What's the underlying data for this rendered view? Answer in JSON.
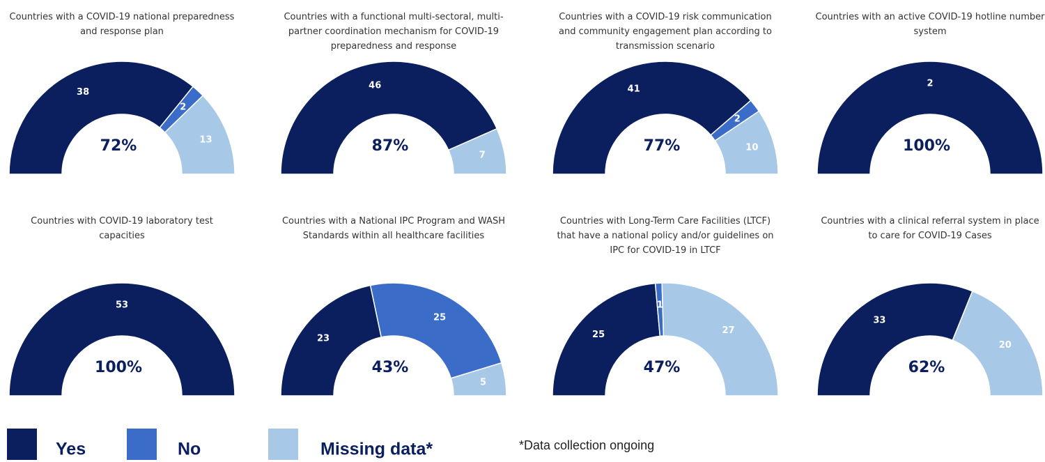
{
  "chart_data": [
    {
      "type": "semi-donut",
      "title": "Countries with a COVID-19 national preparedness and response plan",
      "values": [
        38,
        2,
        13
      ],
      "center_label": "72%"
    },
    {
      "type": "semi-donut",
      "title": "Countries with a functional multi-sectoral, multi-partner coordination mechanism for COVID-19 preparedness and response",
      "values": [
        46,
        null,
        7
      ],
      "center_label": "87%"
    },
    {
      "type": "semi-donut",
      "title": "Countries with a COVID-19 risk communication and community engagement plan according to transmission scenario",
      "values": [
        41,
        2,
        10
      ],
      "center_label": "77%"
    },
    {
      "type": "semi-donut",
      "title": "Countries with an active COVID-19 hotline number system",
      "values": [
        2,
        null,
        null
      ],
      "center_label": "100%"
    },
    {
      "type": "semi-donut",
      "title": "Countries with COVID-19 laboratory test capacities",
      "values": [
        53,
        null,
        null
      ],
      "center_label": "100%"
    },
    {
      "type": "semi-donut",
      "title": "Countries with a National IPC Program and WASH Standards within all healthcare facilities",
      "values": [
        23,
        25,
        5
      ],
      "center_label": "43%"
    },
    {
      "type": "semi-donut",
      "title": "Countries with Long-Term Care Facilities (LTCF) that have a national policy and/or guidelines on IPC for COVID-19 in LTCF",
      "values": [
        25,
        1,
        27
      ],
      "center_label": "47%"
    },
    {
      "type": "semi-donut",
      "title": "Countries with a clinical referral system in place to care for COVID-19 Cases",
      "values": [
        33,
        null,
        20
      ],
      "center_label": "62%"
    }
  ],
  "legend": {
    "names": [
      "Yes",
      "No",
      "Missing data*"
    ],
    "colors": [
      "#0b1f5e",
      "#3a6cc8",
      "#a8c8e8"
    ]
  },
  "footnote": "*Data collection ongoing"
}
